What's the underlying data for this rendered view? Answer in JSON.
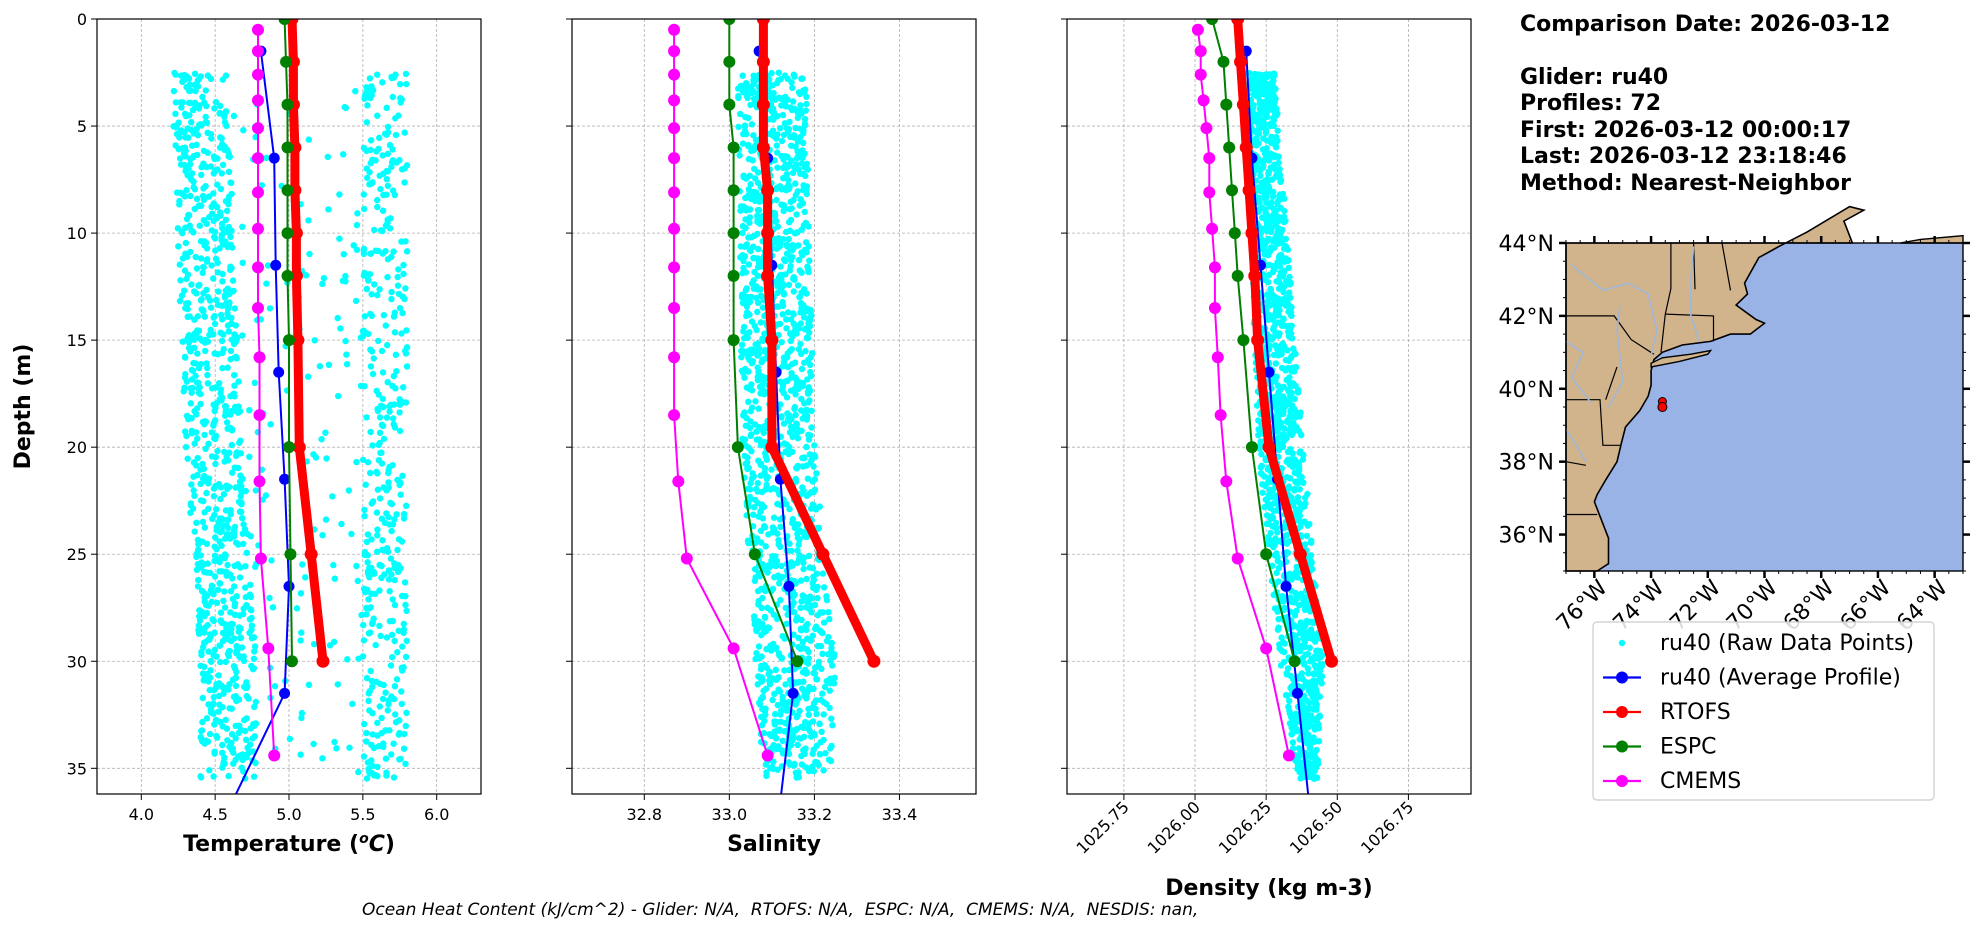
{
  "info": {
    "comparison_date": "Comparison Date: 2026-03-12",
    "glider": "Glider: ru40",
    "profiles": "Profiles: 72",
    "first": "First: 2026-03-12 00:00:17",
    "last": "Last: 2026-03-12 23:18:46",
    "method": "Method: Nearest-Neighbor"
  },
  "footer": "Ocean Heat Content (kJ/cm^2) - Glider: N/A,  RTOFS: N/A,  ESPC: N/A,  CMEMS: N/A,  NESDIS: nan,",
  "colors": {
    "raw": "#00ffff",
    "glider": "#0000ff",
    "rtofs": "#ff0000",
    "espc": "#008000",
    "cmems": "#ff00ff",
    "land": "#d2b48c",
    "ocean": "#99b3e6"
  },
  "legend": [
    "ru40 (Raw Data Points)",
    "ru40 (Average Profile)",
    "RTOFS",
    "ESPC",
    "CMEMS"
  ],
  "chart_data": [
    {
      "type": "line",
      "xlabel": "Temperature ($^{o}C$)",
      "ylabel": "Depth (m)",
      "xlim": [
        3.7,
        6.3
      ],
      "ylim": [
        36.2,
        0
      ],
      "xticks": [
        "4.0",
        "4.5",
        "5.0",
        "5.5",
        "6.0"
      ],
      "xtick_values": [
        4.0,
        4.5,
        5.0,
        5.5,
        6.0
      ],
      "yticks": [
        "0",
        "5",
        "10",
        "15",
        "20",
        "25",
        "30",
        "35"
      ],
      "ytick_values": [
        0,
        5,
        10,
        15,
        20,
        25,
        30,
        35
      ],
      "grid": true,
      "raw_range": [
        [
          2.5,
          4.2,
          5.8
        ],
        [
          20,
          4.3,
          5.8
        ],
        [
          30,
          4.4,
          5.8
        ],
        [
          35.5,
          4.4,
          5.8
        ]
      ],
      "series": [
        {
          "name": "ru40 (Average Profile)",
          "depth": [
            1.5,
            6.5,
            11.5,
            16.5,
            21.5,
            26.5,
            31.5,
            36.5
          ],
          "values": [
            4.81,
            4.9,
            4.91,
            4.93,
            4.97,
            5.0,
            4.97,
            4.62
          ]
        },
        {
          "name": "RTOFS",
          "depth": [
            0,
            2,
            4,
            6,
            8,
            10,
            12,
            15,
            20,
            25,
            30
          ],
          "values": [
            5.02,
            5.03,
            5.03,
            5.04,
            5.04,
            5.05,
            5.05,
            5.06,
            5.07,
            5.15,
            5.23
          ]
        },
        {
          "name": "ESPC",
          "depth": [
            0,
            2,
            4,
            6,
            8,
            10,
            12,
            15,
            20,
            25,
            30
          ],
          "values": [
            4.97,
            4.98,
            4.99,
            4.99,
            4.99,
            4.99,
            4.99,
            5.0,
            5.0,
            5.01,
            5.02
          ]
        },
        {
          "name": "CMEMS",
          "depth": [
            0.5,
            1.5,
            2.6,
            3.8,
            5.1,
            6.5,
            8.1,
            9.8,
            11.6,
            13.5,
            15.8,
            18.5,
            21.6,
            25.2,
            29.4,
            34.4
          ],
          "values": [
            4.79,
            4.79,
            4.79,
            4.79,
            4.79,
            4.79,
            4.79,
            4.79,
            4.79,
            4.79,
            4.8,
            4.8,
            4.8,
            4.81,
            4.86,
            4.9
          ]
        }
      ]
    },
    {
      "type": "line",
      "xlabel": "Salinity",
      "ylabel": "",
      "xlim": [
        32.63,
        33.58
      ],
      "ylim": [
        36.2,
        0
      ],
      "xticks": [
        "32.8",
        "33.0",
        "33.2",
        "33.4"
      ],
      "xtick_values": [
        32.8,
        33.0,
        33.2,
        33.4
      ],
      "grid": true,
      "raw_range": [
        [
          2.5,
          33.02,
          33.18
        ],
        [
          20,
          33.03,
          33.2
        ],
        [
          30,
          33.06,
          33.25
        ],
        [
          35.5,
          33.08,
          33.24
        ]
      ],
      "series": [
        {
          "name": "ru40 (Average Profile)",
          "depth": [
            1.5,
            6.5,
            11.5,
            16.5,
            21.5,
            26.5,
            31.5,
            36.5
          ],
          "values": [
            33.07,
            33.09,
            33.1,
            33.11,
            33.12,
            33.14,
            33.15,
            33.12
          ]
        },
        {
          "name": "RTOFS",
          "depth": [
            0,
            2,
            4,
            6,
            8,
            10,
            12,
            15,
            20,
            25,
            30
          ],
          "values": [
            33.08,
            33.08,
            33.08,
            33.08,
            33.09,
            33.09,
            33.09,
            33.1,
            33.1,
            33.22,
            33.34
          ]
        },
        {
          "name": "ESPC",
          "depth": [
            0,
            2,
            4,
            6,
            8,
            10,
            12,
            15,
            20,
            25,
            30
          ],
          "values": [
            33.0,
            33.0,
            33.0,
            33.01,
            33.01,
            33.01,
            33.01,
            33.01,
            33.02,
            33.06,
            33.16
          ]
        },
        {
          "name": "CMEMS",
          "depth": [
            0.5,
            1.5,
            2.6,
            3.8,
            5.1,
            6.5,
            8.1,
            9.8,
            11.6,
            13.5,
            15.8,
            18.5,
            21.6,
            25.2,
            29.4,
            34.4
          ],
          "values": [
            32.87,
            32.87,
            32.87,
            32.87,
            32.87,
            32.87,
            32.87,
            32.87,
            32.87,
            32.87,
            32.87,
            32.87,
            32.88,
            32.9,
            33.01,
            33.09
          ]
        }
      ]
    },
    {
      "type": "line",
      "xlabel": "Density (kg m-3)",
      "ylabel": "",
      "xlim": [
        1025.55,
        1026.97
      ],
      "ylim": [
        36.2,
        0
      ],
      "xticks": [
        "1025.75",
        "1026.00",
        "1026.25",
        "1026.50",
        "1026.75"
      ],
      "xtick_values": [
        1025.75,
        1026.0,
        1026.25,
        1026.5,
        1026.75
      ],
      "grid": true,
      "raw_range": [
        [
          2.5,
          1026.18,
          1026.28
        ],
        [
          20,
          1026.22,
          1026.38
        ],
        [
          30,
          1026.3,
          1026.45
        ],
        [
          35.5,
          1026.36,
          1026.43
        ]
      ],
      "series": [
        {
          "name": "ru40 (Average Profile)",
          "depth": [
            1.5,
            6.5,
            11.5,
            16.5,
            21.5,
            26.5,
            31.5,
            36.5
          ],
          "values": [
            1026.18,
            1026.2,
            1026.23,
            1026.26,
            1026.29,
            1026.32,
            1026.36,
            1026.4
          ]
        },
        {
          "name": "RTOFS",
          "depth": [
            0,
            2,
            4,
            6,
            8,
            10,
            12,
            15,
            20,
            25,
            30
          ],
          "values": [
            1026.15,
            1026.16,
            1026.17,
            1026.18,
            1026.19,
            1026.2,
            1026.21,
            1026.22,
            1026.26,
            1026.37,
            1026.48
          ]
        },
        {
          "name": "ESPC",
          "depth": [
            0,
            2,
            4,
            6,
            8,
            10,
            12,
            15,
            20,
            25,
            30
          ],
          "values": [
            1026.06,
            1026.1,
            1026.11,
            1026.12,
            1026.13,
            1026.14,
            1026.15,
            1026.17,
            1026.2,
            1026.25,
            1026.35
          ]
        },
        {
          "name": "CMEMS",
          "depth": [
            0.5,
            1.5,
            2.6,
            3.8,
            5.1,
            6.5,
            8.1,
            9.8,
            11.6,
            13.5,
            15.8,
            18.5,
            21.6,
            25.2,
            29.4,
            34.4
          ],
          "values": [
            1026.01,
            1026.02,
            1026.02,
            1026.03,
            1026.04,
            1026.05,
            1026.05,
            1026.06,
            1026.07,
            1026.07,
            1026.08,
            1026.09,
            1026.11,
            1026.15,
            1026.25,
            1026.33
          ]
        }
      ]
    }
  ],
  "map": {
    "lat_labels": [
      "44°N",
      "42°N",
      "40°N",
      "38°N",
      "36°N"
    ],
    "lat_values": [
      44,
      42,
      40,
      38,
      36
    ],
    "lon_labels": [
      "76°W",
      "74°W",
      "72°W",
      "70°W",
      "68°W",
      "66°W",
      "64°W"
    ],
    "lon_values": [
      -76,
      -74,
      -72,
      -70,
      -68,
      -66,
      -64
    ],
    "extent": [
      -77,
      -63,
      35,
      44
    ],
    "glider_position": [
      -73.6,
      39.5
    ]
  }
}
